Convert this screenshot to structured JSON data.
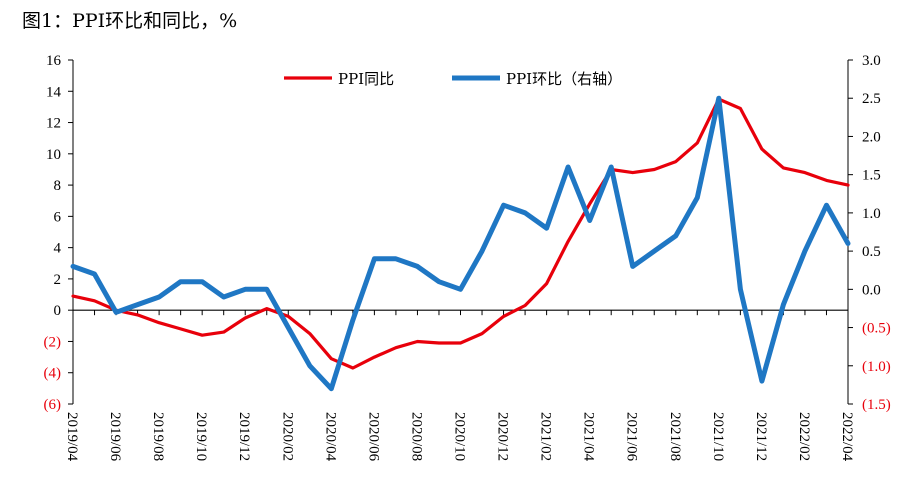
{
  "title": "图1：PPI环比和同比，%",
  "chart_data": {
    "type": "line",
    "x": [
      "2019/04",
      "2019/05",
      "2019/06",
      "2019/07",
      "2019/08",
      "2019/09",
      "2019/10",
      "2019/11",
      "2019/12",
      "2020/01",
      "2020/02",
      "2020/03",
      "2020/04",
      "2020/05",
      "2020/06",
      "2020/07",
      "2020/08",
      "2020/09",
      "2020/10",
      "2020/11",
      "2020/12",
      "2021/01",
      "2021/02",
      "2021/03",
      "2021/04",
      "2021/05",
      "2021/06",
      "2021/07",
      "2021/08",
      "2021/09",
      "2021/10",
      "2021/11",
      "2021/12",
      "2022/01",
      "2022/02",
      "2022/03",
      "2022/04"
    ],
    "xtick_labels": [
      "2019/04",
      "2019/06",
      "2019/08",
      "2019/10",
      "2019/12",
      "2020/02",
      "2020/04",
      "2020/06",
      "2020/08",
      "2020/10",
      "2020/12",
      "2021/02",
      "2021/04",
      "2021/06",
      "2021/08",
      "2021/10",
      "2021/12",
      "2022/02",
      "2022/04"
    ],
    "series": [
      {
        "name": "PPI同比",
        "axis": "left",
        "color": "#e8000b",
        "values": [
          0.9,
          0.6,
          0.0,
          -0.3,
          -0.8,
          -1.2,
          -1.6,
          -1.4,
          -0.5,
          0.1,
          -0.4,
          -1.5,
          -3.1,
          -3.7,
          -3.0,
          -2.4,
          -2.0,
          -2.1,
          -2.1,
          -1.5,
          -0.4,
          0.3,
          1.7,
          4.4,
          6.8,
          9.0,
          8.8,
          9.0,
          9.5,
          10.7,
          13.5,
          12.9,
          10.3,
          9.1,
          8.8,
          8.3,
          8.0
        ]
      },
      {
        "name": "PPI环比（右轴）",
        "axis": "right",
        "color": "#1f77c4",
        "values": [
          0.3,
          0.2,
          -0.3,
          -0.2,
          -0.1,
          0.1,
          0.1,
          -0.1,
          0.0,
          0.0,
          -0.5,
          -1.0,
          -1.3,
          -0.4,
          0.4,
          0.4,
          0.3,
          0.1,
          0.0,
          0.5,
          1.1,
          1.0,
          0.8,
          1.6,
          0.9,
          1.6,
          0.3,
          0.5,
          0.7,
          1.2,
          2.5,
          0.0,
          -1.2,
          -0.2,
          0.5,
          1.1,
          0.6
        ]
      }
    ],
    "left_axis": {
      "ylim": [
        -6,
        16
      ],
      "ticks": [
        16,
        14,
        12,
        10,
        8,
        6,
        4,
        2,
        0,
        -2,
        -4,
        -6
      ],
      "tick_labels": [
        "16",
        "14",
        "12",
        "10",
        "8",
        "6",
        "4",
        "2",
        "0",
        "(2)",
        "(4)",
        "(6)"
      ]
    },
    "right_axis": {
      "ylim": [
        -1.5,
        3.0
      ],
      "ticks": [
        3.0,
        2.5,
        2.0,
        1.5,
        1.0,
        0.5,
        0.0,
        -0.5,
        -1.0,
        -1.5
      ],
      "tick_labels": [
        "3.0",
        "2.5",
        "2.0",
        "1.5",
        "1.0",
        "0.5",
        "0.0",
        "(0.5)",
        "(1.0)",
        "(1.5)"
      ]
    },
    "grid": false,
    "legend_position": "top-center",
    "negative_label_color": "#e8000b"
  }
}
